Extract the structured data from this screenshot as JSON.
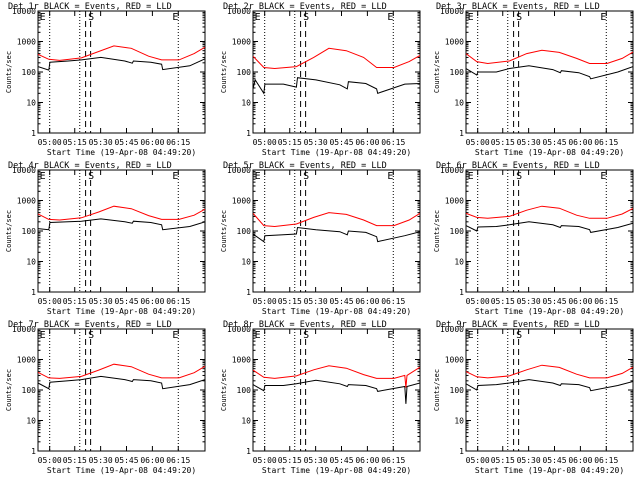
{
  "colors": {
    "events": "#000000",
    "lld": "#ff0000",
    "axis": "#000000",
    "background": "#ffffff"
  },
  "chart_data": [
    {
      "type": "line",
      "title": "Det 1r BLACK = Events, RED = LLD",
      "ylabel": "Counts/sec",
      "xlabel": "Start Time (19-Apr-08 04:49:20)",
      "markers": [
        "E",
        "S",
        "E"
      ],
      "x_ticks": [
        "05:00",
        "05:15",
        "05:30",
        "05:45",
        "06:00",
        "06:15"
      ],
      "y_ticks": [
        "1",
        "10",
        "100",
        "1000",
        "10000"
      ],
      "yscale": "log",
      "ylim": [
        1,
        10000
      ],
      "xlim": [
        -0.5,
        7.2
      ],
      "series": [
        {
          "name": "BLACK = Events",
          "x": [
            -0.5,
            0,
            0.05,
            0.9,
            1.5,
            2.4,
            3.5,
            3.85,
            3.9,
            4.7,
            5.2,
            5.25,
            6.5,
            7.2
          ],
          "y": [
            150,
            115,
            210,
            230,
            250,
            300,
            230,
            195,
            230,
            210,
            180,
            120,
            160,
            270
          ]
        },
        {
          "name": "RED = LLD",
          "x": [
            -0.5,
            0,
            0.5,
            1.5,
            2.3,
            3.0,
            3.8,
            4.6,
            5.2,
            6.0,
            6.7,
            7.2
          ],
          "y": [
            380,
            260,
            240,
            290,
            470,
            720,
            600,
            330,
            250,
            250,
            400,
            650
          ]
        }
      ]
    },
    {
      "type": "line",
      "title": "Det 2r BLACK = Events, RED = LLD",
      "ylabel": "Counts/sec",
      "xlabel": "Start Time (19-Apr-08 04:49:20)",
      "markers": [
        "E",
        "S",
        "E"
      ],
      "x_ticks": [
        "05:00",
        "05:15",
        "05:30",
        "05:45",
        "06:00",
        "06:15"
      ],
      "y_ticks": [
        "1",
        "10",
        "100",
        "1000",
        "10000"
      ],
      "yscale": "log",
      "ylim": [
        1,
        10000
      ],
      "xlim": [
        -0.5,
        7.2
      ],
      "series": [
        {
          "name": "BLACK = Events",
          "x": [
            -0.5,
            -0.4,
            0,
            0.05,
            0.9,
            1.5,
            1.55,
            2.4,
            3.5,
            3.85,
            3.9,
            4.7,
            5.2,
            5.25,
            6.5,
            7.2
          ],
          "y": [
            28,
            55,
            20,
            40,
            40,
            32,
            65,
            55,
            38,
            28,
            48,
            42,
            28,
            20,
            40,
            42
          ]
        },
        {
          "name": "RED = LLD",
          "x": [
            -0.5,
            0,
            0.5,
            1.5,
            2.3,
            3.0,
            3.8,
            4.6,
            5.2,
            6.0,
            6.7,
            7.2
          ],
          "y": [
            330,
            140,
            130,
            150,
            300,
            600,
            500,
            300,
            140,
            140,
            220,
            350
          ]
        }
      ]
    },
    {
      "type": "line",
      "title": "Det 3r BLACK = Events, RED = LLD",
      "ylabel": "Counts/sec",
      "xlabel": "Start Time (19-Apr-08 04:49:20)",
      "markers": [
        "E",
        "S",
        "E"
      ],
      "x_ticks": [
        "05:00",
        "05:15",
        "05:30",
        "05:45",
        "06:00",
        "06:15"
      ],
      "y_ticks": [
        "1",
        "10",
        "100",
        "1000",
        "10000"
      ],
      "yscale": "log",
      "ylim": [
        1,
        10000
      ],
      "xlim": [
        -0.5,
        7.2
      ],
      "series": [
        {
          "name": "BLACK = Events",
          "x": [
            -0.5,
            0,
            0.05,
            0.9,
            1.5,
            2.4,
            3.5,
            3.85,
            3.9,
            4.7,
            5.2,
            5.25,
            6.5,
            7.2
          ],
          "y": [
            130,
            80,
            100,
            100,
            130,
            160,
            120,
            95,
            110,
            95,
            70,
            60,
            100,
            150
          ]
        },
        {
          "name": "RED = LLD",
          "x": [
            -0.5,
            0,
            0.5,
            1.5,
            2.3,
            3.0,
            3.8,
            4.6,
            5.2,
            6.0,
            6.7,
            7.2
          ],
          "y": [
            400,
            220,
            190,
            230,
            400,
            520,
            440,
            280,
            190,
            190,
            280,
            450
          ]
        }
      ]
    },
    {
      "type": "line",
      "title": "Det 4r BLACK = Events, RED = LLD",
      "ylabel": "Counts/sec",
      "xlabel": "Start Time (19-Apr-08 04:49:20)",
      "markers": [
        "E",
        "S",
        "E"
      ],
      "x_ticks": [
        "05:00",
        "05:15",
        "05:30",
        "05:45",
        "06:00",
        "06:15"
      ],
      "y_ticks": [
        "1",
        "10",
        "100",
        "1000",
        "10000"
      ],
      "yscale": "log",
      "ylim": [
        1,
        10000
      ],
      "xlim": [
        -0.5,
        7.2
      ],
      "series": [
        {
          "name": "BLACK = Events",
          "x": [
            -0.5,
            0,
            0.05,
            0.9,
            1.5,
            2.4,
            3.5,
            3.85,
            3.9,
            4.7,
            5.2,
            5.25,
            6.5,
            7.2
          ],
          "y": [
            120,
            110,
            190,
            200,
            210,
            250,
            200,
            180,
            210,
            190,
            160,
            110,
            140,
            200
          ]
        },
        {
          "name": "RED = LLD",
          "x": [
            -0.5,
            0,
            0.5,
            1.5,
            2.3,
            3.0,
            3.8,
            4.6,
            5.2,
            6.0,
            6.7,
            7.2
          ],
          "y": [
            360,
            240,
            230,
            270,
            420,
            650,
            540,
            320,
            240,
            240,
            330,
            520
          ]
        }
      ]
    },
    {
      "type": "line",
      "title": "Det 5r BLACK = Events, RED = LLD",
      "ylabel": "Counts/sec",
      "xlabel": "Start Time (19-Apr-08 04:49:20)",
      "markers": [
        "E",
        "S",
        "E"
      ],
      "x_ticks": [
        "05:00",
        "05:15",
        "05:30",
        "05:45",
        "06:00",
        "06:15"
      ],
      "y_ticks": [
        "1",
        "10",
        "100",
        "1000",
        "10000"
      ],
      "yscale": "log",
      "ylim": [
        1,
        10000
      ],
      "xlim": [
        -0.5,
        7.2
      ],
      "series": [
        {
          "name": "BLACK = Events",
          "x": [
            -0.5,
            0,
            0.05,
            0.9,
            1.5,
            1.55,
            2.4,
            3.5,
            3.85,
            3.9,
            4.7,
            5.2,
            5.25,
            6.5,
            7.2
          ],
          "y": [
            80,
            45,
            70,
            75,
            80,
            130,
            110,
            95,
            75,
            100,
            90,
            65,
            45,
            70,
            95
          ]
        },
        {
          "name": "RED = LLD",
          "x": [
            -0.5,
            0,
            0.5,
            1.5,
            2.3,
            3.0,
            3.8,
            4.6,
            5.2,
            6.0,
            6.7,
            7.2
          ],
          "y": [
            380,
            150,
            140,
            170,
            280,
            400,
            350,
            230,
            150,
            150,
            230,
            380
          ]
        }
      ]
    },
    {
      "type": "line",
      "title": "Det 6r BLACK = Events, RED = LLD",
      "ylabel": "Counts/sec",
      "xlabel": "Start Time (19-Apr-08 04:49:20)",
      "markers": [
        "E",
        "S",
        "E"
      ],
      "x_ticks": [
        "05:00",
        "05:15",
        "05:30",
        "05:45",
        "06:00",
        "06:15"
      ],
      "y_ticks": [
        "1",
        "10",
        "100",
        "1000",
        "10000"
      ],
      "yscale": "log",
      "ylim": [
        1,
        10000
      ],
      "xlim": [
        -0.5,
        7.2
      ],
      "series": [
        {
          "name": "BLACK = Events",
          "x": [
            -0.5,
            0,
            0.05,
            0.9,
            1.5,
            2.4,
            3.5,
            3.85,
            3.9,
            4.7,
            5.2,
            5.25,
            6.5,
            7.2
          ],
          "y": [
            150,
            100,
            135,
            140,
            160,
            200,
            160,
            130,
            150,
            140,
            110,
            90,
            130,
            180
          ]
        },
        {
          "name": "RED = LLD",
          "x": [
            -0.5,
            0,
            0.5,
            1.5,
            2.3,
            3.0,
            3.8,
            4.6,
            5.2,
            6.0,
            6.7,
            7.2
          ],
          "y": [
            380,
            280,
            260,
            300,
            480,
            650,
            560,
            330,
            260,
            260,
            360,
            550
          ]
        }
      ]
    },
    {
      "type": "line",
      "title": "Det 7r BLACK = Events, RED = LLD",
      "ylabel": "Counts/sec",
      "xlabel": "Start Time (19-Apr-08 04:49:20)",
      "markers": [
        "E",
        "S",
        "E"
      ],
      "x_ticks": [
        "05:00",
        "05:15",
        "05:30",
        "05:45",
        "06:00",
        "06:15"
      ],
      "y_ticks": [
        "1",
        "10",
        "100",
        "1000",
        "10000"
      ],
      "yscale": "log",
      "ylim": [
        1,
        10000
      ],
      "xlim": [
        -0.5,
        7.2
      ],
      "series": [
        {
          "name": "BLACK = Events",
          "x": [
            -0.5,
            0,
            0.05,
            0.9,
            1.5,
            2.4,
            3.5,
            3.85,
            3.9,
            4.7,
            5.2,
            5.25,
            6.5,
            7.2
          ],
          "y": [
            170,
            110,
            180,
            200,
            220,
            280,
            220,
            190,
            220,
            200,
            170,
            110,
            150,
            220
          ]
        },
        {
          "name": "RED = LLD",
          "x": [
            -0.5,
            0,
            0.5,
            1.5,
            2.3,
            3.0,
            3.8,
            4.6,
            5.2,
            6.0,
            6.7,
            7.2
          ],
          "y": [
            380,
            250,
            240,
            280,
            450,
            700,
            580,
            330,
            250,
            250,
            370,
            600
          ]
        }
      ]
    },
    {
      "type": "line",
      "title": "Det 8r BLACK = Events, RED = LLD",
      "ylabel": "Counts/sec",
      "xlabel": "Start Time (19-Apr-08 04:49:20)",
      "markers": [
        "E",
        "S",
        "E"
      ],
      "x_ticks": [
        "05:00",
        "05:15",
        "05:30",
        "05:45",
        "06:00",
        "06:15"
      ],
      "y_ticks": [
        "1",
        "10",
        "100",
        "1000",
        "10000"
      ],
      "yscale": "log",
      "ylim": [
        1,
        10000
      ],
      "xlim": [
        -0.5,
        7.2
      ],
      "series": [
        {
          "name": "BLACK = Events",
          "x": [
            -0.5,
            0,
            0.05,
            0.9,
            1.5,
            2.4,
            3.5,
            3.85,
            3.9,
            4.7,
            5.2,
            5.25,
            6.5,
            6.55,
            6.6,
            7.2
          ],
          "y": [
            150,
            95,
            140,
            140,
            160,
            210,
            160,
            130,
            150,
            140,
            110,
            90,
            130,
            35,
            130,
            170
          ]
        },
        {
          "name": "RED = LLD",
          "x": [
            -0.5,
            0,
            0.5,
            1.5,
            2.3,
            3.0,
            3.8,
            4.6,
            5.2,
            6.0,
            6.5,
            6.55,
            6.6,
            7.2
          ],
          "y": [
            450,
            260,
            240,
            290,
            460,
            620,
            520,
            320,
            240,
            240,
            300,
            120,
            300,
            560
          ]
        }
      ]
    },
    {
      "type": "line",
      "title": "Det 9r BLACK = Events, RED = LLD",
      "ylabel": "Counts/sec",
      "xlabel": "Start Time (19-Apr-08 04:49:20)",
      "markers": [
        "E",
        "S",
        "E"
      ],
      "x_ticks": [
        "05:00",
        "05:15",
        "05:30",
        "05:45",
        "06:00",
        "06:15"
      ],
      "y_ticks": [
        "1",
        "10",
        "100",
        "1000",
        "10000"
      ],
      "yscale": "log",
      "ylim": [
        1,
        10000
      ],
      "xlim": [
        -0.5,
        7.2
      ],
      "series": [
        {
          "name": "BLACK = Events",
          "x": [
            -0.5,
            0,
            0.05,
            0.9,
            1.5,
            2.4,
            3.5,
            3.85,
            3.9,
            4.7,
            5.2,
            5.25,
            6.5,
            7.2
          ],
          "y": [
            160,
            100,
            140,
            150,
            170,
            220,
            170,
            140,
            160,
            150,
            120,
            95,
            140,
            190
          ]
        },
        {
          "name": "RED = LLD",
          "x": [
            -0.5,
            0,
            0.5,
            1.5,
            2.3,
            3.0,
            3.8,
            4.6,
            5.2,
            6.0,
            6.7,
            7.2
          ],
          "y": [
            400,
            270,
            250,
            290,
            460,
            650,
            550,
            330,
            250,
            250,
            350,
            560
          ]
        }
      ]
    }
  ]
}
